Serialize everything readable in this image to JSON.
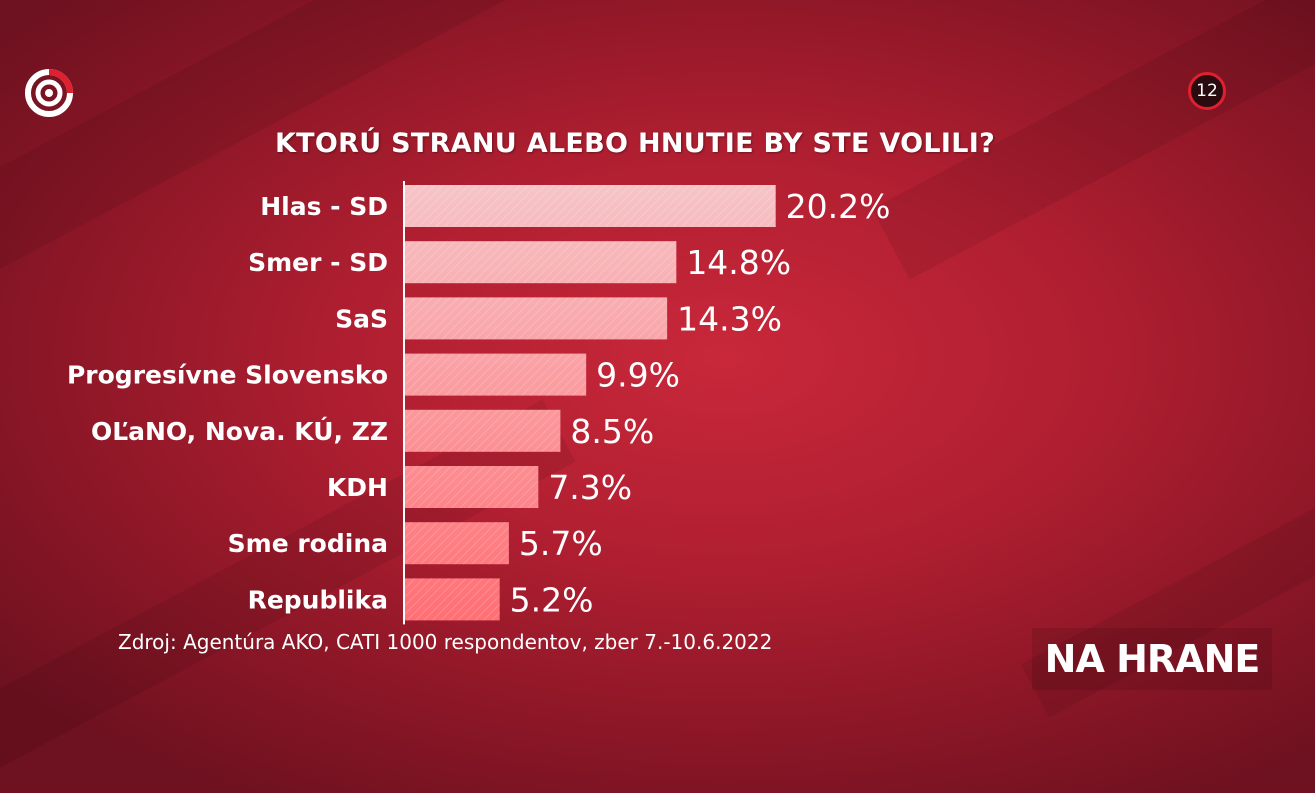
{
  "broadcaster": {
    "logo_icon": "stv-logo-icon",
    "age_rating": "12"
  },
  "show": {
    "name": "NA HRANE"
  },
  "source_note": "Zdroj: Agentúra AKO, CATI 1000 respondentov, zber 7.-10.6.2022",
  "chart_data": {
    "type": "bar",
    "orientation": "horizontal",
    "title": "KTORÚ STRANU ALEBO HNUTIE BY STE VOLILI?",
    "categories": [
      "Hlas - SD",
      "Smer - SD",
      "SaS",
      "Progresívne Slovensko",
      "OĽaNO, Nova. KÚ, ZZ",
      "KDH",
      "Sme rodina",
      "Republika"
    ],
    "values": [
      20.2,
      14.8,
      14.3,
      9.9,
      8.5,
      7.3,
      5.7,
      5.2
    ],
    "value_labels": [
      "20.2%",
      "14.8%",
      "14.3%",
      "9.9%",
      "8.5%",
      "7.3%",
      "5.7%",
      "5.2%"
    ],
    "xlabel": "",
    "ylabel": "",
    "grid": false,
    "colors": {
      "bar_light": "#f6c4c7",
      "bar_dark": "#ff6e73",
      "axis": "#ffffff"
    }
  }
}
